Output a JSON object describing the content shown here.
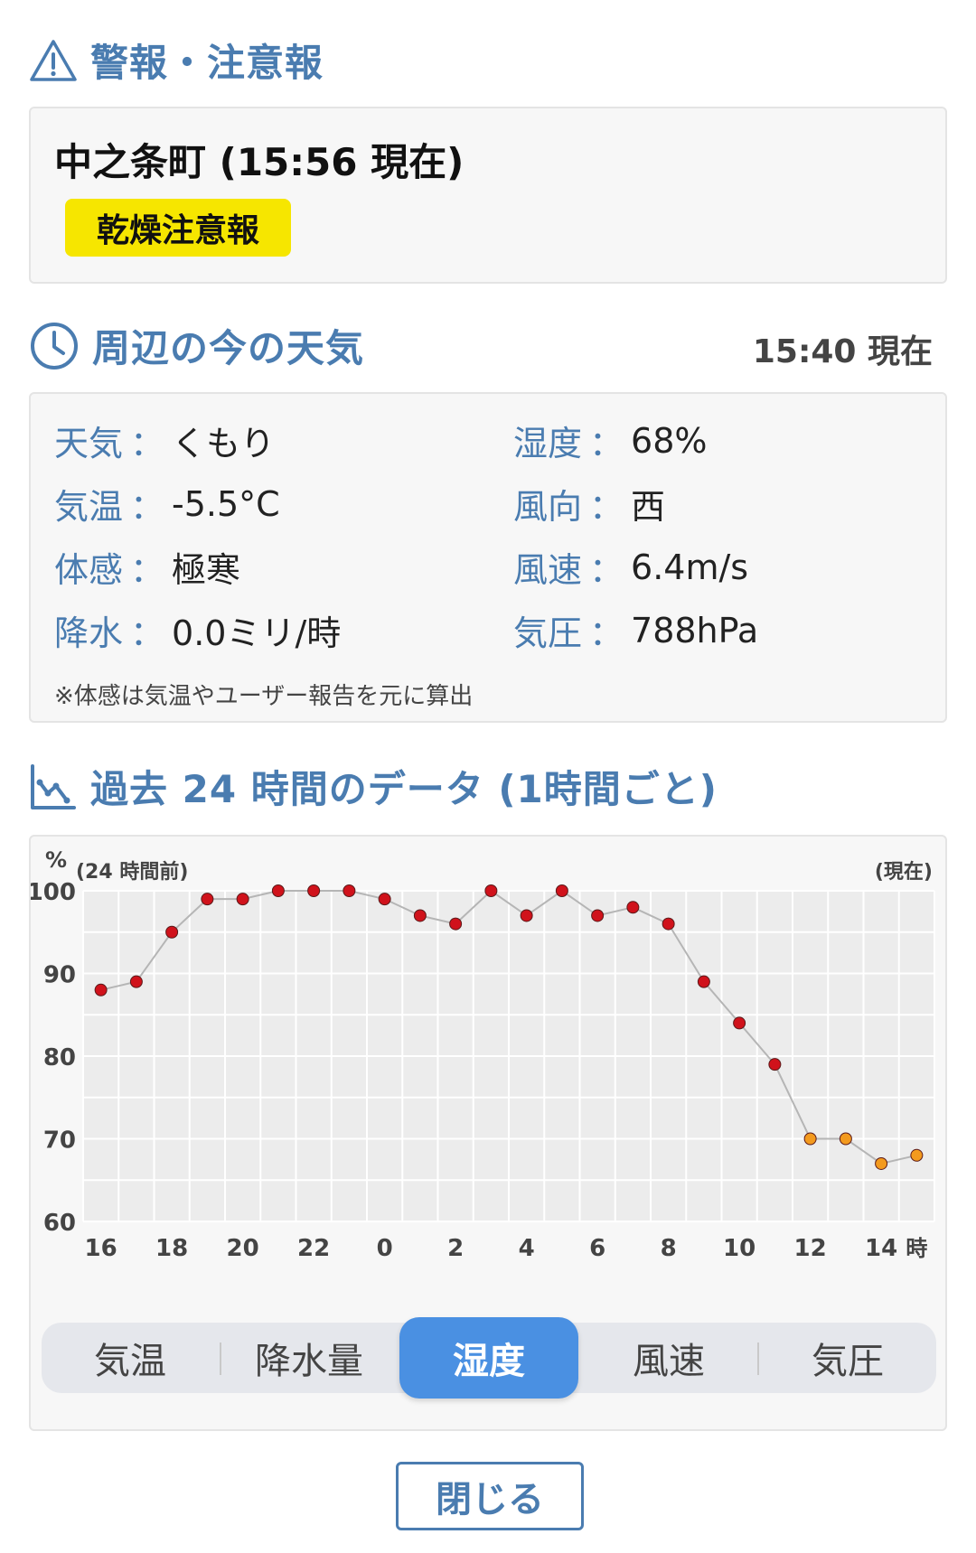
{
  "warnings": {
    "title": "警報・注意報",
    "area": "中之条町 (15:56 現在)",
    "badge": "乾燥注意報"
  },
  "current": {
    "title": "周辺の今の天気",
    "time": "15:40 現在",
    "rows": [
      {
        "label": "天気",
        "value": "くもり"
      },
      {
        "label": "湿度",
        "value": "68%"
      },
      {
        "label": "気温",
        "value": "-5.5°C"
      },
      {
        "label": "風向",
        "value": "西"
      },
      {
        "label": "体感",
        "value": "極寒"
      },
      {
        "label": "風速",
        "value": "6.4m/s"
      },
      {
        "label": "降水",
        "value": "0.0ミリ/時"
      },
      {
        "label": "気圧",
        "value": "788hPa"
      }
    ],
    "colon": "：",
    "note": "※体感は気温やユーザー報告を元に算出"
  },
  "past": {
    "title": "過去 24 時間のデータ (1時間ごと)",
    "tabs": [
      "気温",
      "降水量",
      "湿度",
      "風速",
      "気圧"
    ],
    "active_tab": 2
  },
  "chart_data": {
    "type": "line",
    "ylabel": "%",
    "left_note": "(24 時間前)",
    "right_note": "(現在)",
    "xunit": "時",
    "ylim": [
      60,
      100
    ],
    "yticks": [
      100,
      90,
      80,
      70,
      60
    ],
    "xticks": [
      "16",
      "18",
      "20",
      "22",
      "0",
      "2",
      "4",
      "6",
      "8",
      "10",
      "12",
      "14"
    ],
    "x": [
      "16",
      "17",
      "18",
      "19",
      "20",
      "21",
      "22",
      "23",
      "0",
      "1",
      "2",
      "3",
      "4",
      "5",
      "6",
      "7",
      "8",
      "9",
      "10",
      "11",
      "12",
      "13",
      "14",
      "15"
    ],
    "values": [
      88,
      89,
      95,
      99,
      99,
      100,
      100,
      100,
      99,
      97,
      96,
      100,
      97,
      100,
      97,
      98,
      96,
      89,
      84,
      79,
      70,
      70,
      67,
      68
    ],
    "colors": {
      "normal": "#d0121b",
      "recent": "#f39a1e",
      "line": "#b5b5b5"
    },
    "recent_from_index": 20,
    "grid": true
  },
  "close_label": "閉じる"
}
